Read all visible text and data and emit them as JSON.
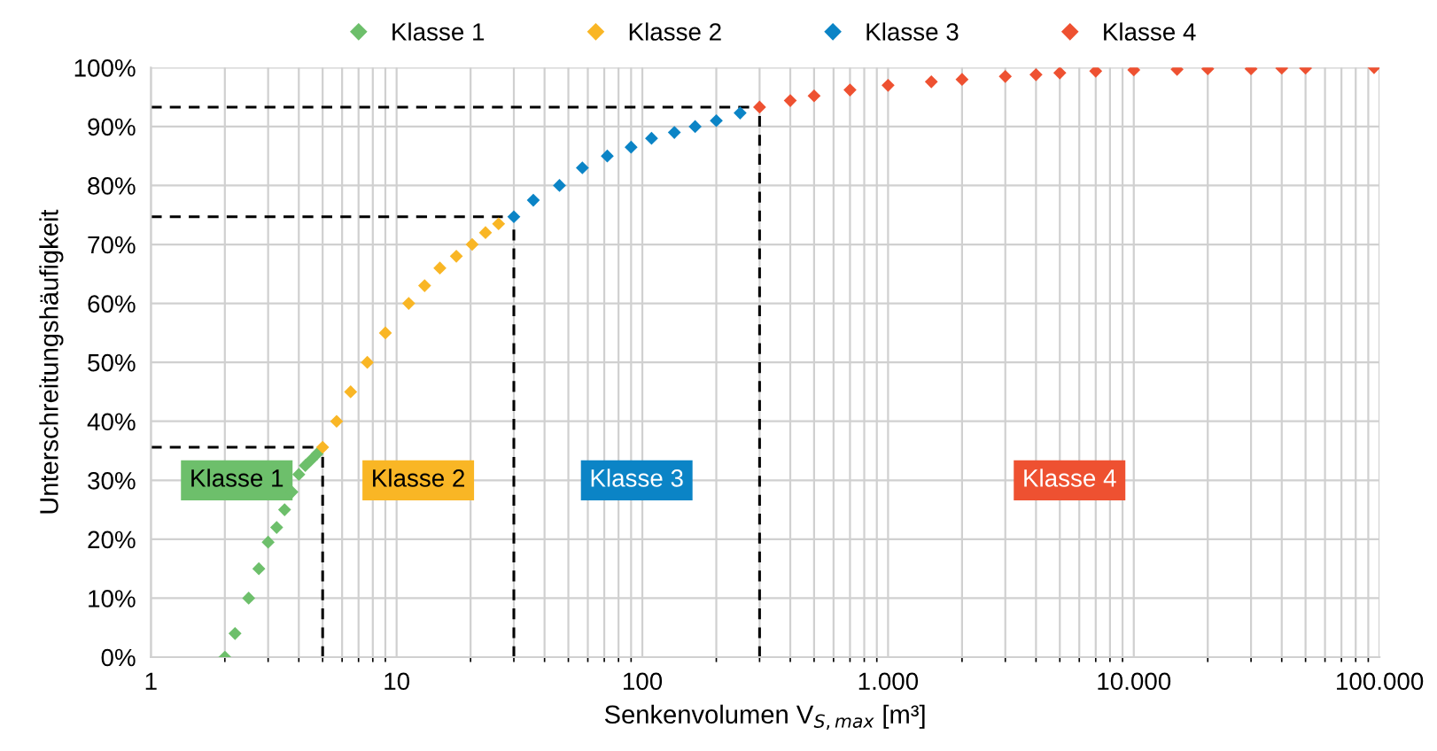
{
  "chart_data": {
    "type": "scatter",
    "xlabel": "Senkenvolumen V$_{S,max}$ [m³]",
    "ylabel": "Unterschreitungshäufigkeit",
    "series": [
      {
        "name": "Klasse 1",
        "color": "#6dbf6b",
        "x": [
          2,
          2.2,
          2.5,
          2.75,
          3,
          3.25,
          3.5,
          3.75,
          4,
          4.25,
          4.5,
          4.75
        ],
        "values": [
          0,
          4,
          10,
          15,
          19.5,
          22,
          25,
          28,
          31,
          32.5,
          33.5,
          34.5
        ]
      },
      {
        "name": "Klasse 2",
        "color": "#f9b625",
        "x": [
          5,
          5.7,
          6.5,
          7.6,
          9,
          11.2,
          13,
          15,
          17.5,
          20.3,
          23,
          26
        ],
        "values": [
          35.6,
          40,
          45,
          50,
          55,
          60,
          63,
          66,
          68,
          70,
          72,
          73.5
        ]
      },
      {
        "name": "Klasse 3",
        "color": "#0b84c6",
        "x": [
          30,
          36,
          46,
          57,
          72,
          90,
          109,
          135,
          164,
          200,
          250
        ],
        "values": [
          74.7,
          77.5,
          80,
          83,
          85,
          86.5,
          88,
          89,
          90,
          91,
          92.3
        ]
      },
      {
        "name": "Klasse 4",
        "color": "#ee5131",
        "x": [
          300,
          400,
          500,
          700,
          1000,
          1500,
          2000,
          3000,
          4000,
          5000,
          7000,
          10000,
          15000,
          20000,
          30000,
          40000,
          50000,
          95000
        ],
        "values": [
          93.3,
          94.4,
          95.2,
          96.2,
          97.0,
          97.6,
          98.0,
          98.5,
          98.8,
          99.1,
          99.4,
          99.6,
          99.7,
          99.8,
          99.8,
          99.9,
          99.9,
          100
        ]
      }
    ],
    "xlim": [
      1,
      100000
    ],
    "xticks": [
      1,
      10,
      100,
      {
        "value": 1000,
        "label": "1.000"
      },
      {
        "value": 10000,
        "label": "10.000"
      },
      {
        "value": 100000,
        "label": "100.000"
      }
    ],
    "ylim": [
      0,
      100
    ],
    "yticks": [
      {
        "value": 0,
        "label": "0%"
      },
      {
        "value": 10,
        "label": "10%"
      },
      {
        "value": 20,
        "label": "20%"
      },
      {
        "value": 30,
        "label": "30%"
      },
      {
        "value": 40,
        "label": "40%"
      },
      {
        "value": 50,
        "label": "50%"
      },
      {
        "value": 60,
        "label": "60%"
      },
      {
        "value": 70,
        "label": "70%"
      },
      {
        "value": 80,
        "label": "80%"
      },
      {
        "value": 90,
        "label": "90%"
      },
      {
        "value": 100,
        "label": "100%"
      }
    ],
    "log": "x",
    "grid": true,
    "legend": "top",
    "marker": "diamond",
    "ref_lines": [
      {
        "axis": "x",
        "value": 5,
        "color": "#000000",
        "line_style": "dashed"
      },
      {
        "axis": "y",
        "value": 35.6,
        "color": "#000000",
        "line_style": "dashed"
      },
      {
        "axis": "x",
        "value": 30,
        "color": "#000000",
        "line_style": "dashed"
      },
      {
        "axis": "y",
        "value": 74.7,
        "color": "#000000",
        "line_style": "dashed"
      },
      {
        "axis": "x",
        "value": 300,
        "color": "#000000",
        "line_style": "dashed"
      },
      {
        "axis": "y",
        "value": 93.3,
        "color": "#000000",
        "line_style": "dashed"
      }
    ],
    "annotations": [
      "Klasse 1",
      "Klasse 2",
      "Klasse 3",
      "Klasse 4"
    ]
  }
}
